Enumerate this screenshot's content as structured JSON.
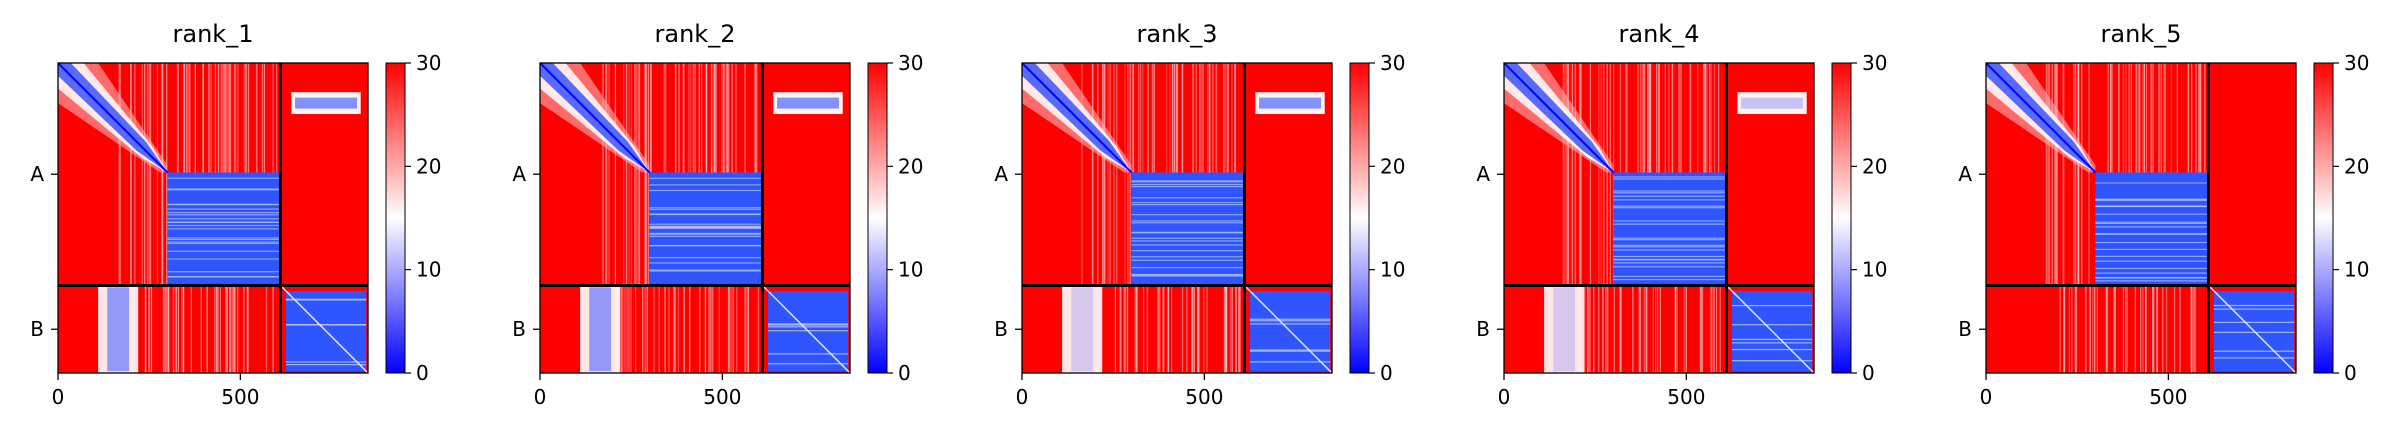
{
  "chart_data": [
    {
      "type": "heatmap",
      "title": "rank_1",
      "xticks": [
        0,
        500
      ],
      "yticklabels": [
        "A",
        "B"
      ],
      "chains": [
        {
          "name": "A",
          "start": 0,
          "end": 610
        },
        {
          "name": "B",
          "start": 610,
          "end": 850
        }
      ],
      "xlim": [
        0,
        850
      ],
      "colorbar": {
        "min": 0,
        "max": 30,
        "ticks": [
          0,
          10,
          20,
          30
        ],
        "colors": [
          "#0000ff",
          "#ffffff",
          "#ff0000"
        ]
      },
      "features": {
        "a_diag_blue": true,
        "a_block_blue": true,
        "a_b_white_band": true,
        "b_a_white_band": true,
        "b_block_blue": true
      }
    },
    {
      "type": "heatmap",
      "title": "rank_2",
      "xticks": [
        0,
        500
      ],
      "yticklabels": [
        "A",
        "B"
      ],
      "chains": [
        {
          "name": "A",
          "start": 0,
          "end": 610
        },
        {
          "name": "B",
          "start": 610,
          "end": 850
        }
      ],
      "xlim": [
        0,
        850
      ],
      "colorbar": {
        "min": 0,
        "max": 30,
        "ticks": [
          0,
          10,
          20,
          30
        ],
        "colors": [
          "#0000ff",
          "#ffffff",
          "#ff0000"
        ]
      },
      "features": {
        "a_diag_blue": true,
        "a_block_blue": true,
        "a_b_white_band": true,
        "b_a_white_band": true,
        "b_block_blue": true
      }
    },
    {
      "type": "heatmap",
      "title": "rank_3",
      "xticks": [
        0,
        500
      ],
      "yticklabels": [
        "A",
        "B"
      ],
      "chains": [
        {
          "name": "A",
          "start": 0,
          "end": 610
        },
        {
          "name": "B",
          "start": 610,
          "end": 850
        }
      ],
      "xlim": [
        0,
        850
      ],
      "colorbar": {
        "min": 0,
        "max": 30,
        "ticks": [
          0,
          10,
          20,
          30
        ],
        "colors": [
          "#0000ff",
          "#ffffff",
          "#ff0000"
        ]
      },
      "features": {
        "a_diag_blue": true,
        "a_block_blue": true,
        "a_b_white_band": true,
        "b_a_white_band": true,
        "b_block_blue": true
      }
    },
    {
      "type": "heatmap",
      "title": "rank_4",
      "xticks": [
        0,
        500
      ],
      "yticklabels": [
        "A",
        "B"
      ],
      "chains": [
        {
          "name": "A",
          "start": 0,
          "end": 610
        },
        {
          "name": "B",
          "start": 610,
          "end": 850
        }
      ],
      "xlim": [
        0,
        850
      ],
      "colorbar": {
        "min": 0,
        "max": 30,
        "ticks": [
          0,
          10,
          20,
          30
        ],
        "colors": [
          "#0000ff",
          "#ffffff",
          "#ff0000"
        ]
      },
      "features": {
        "a_diag_blue": true,
        "a_block_blue": true,
        "a_b_white_band": true,
        "b_a_white_band": true,
        "b_block_blue": true
      }
    },
    {
      "type": "heatmap",
      "title": "rank_5",
      "xticks": [
        0,
        500
      ],
      "yticklabels": [
        "A",
        "B"
      ],
      "chains": [
        {
          "name": "A",
          "start": 0,
          "end": 610
        },
        {
          "name": "B",
          "start": 610,
          "end": 850
        }
      ],
      "xlim": [
        0,
        850
      ],
      "colorbar": {
        "min": 0,
        "max": 30,
        "ticks": [
          0,
          10,
          20,
          30
        ],
        "colors": [
          "#0000ff",
          "#ffffff",
          "#ff0000"
        ]
      },
      "features": {
        "a_diag_blue": true,
        "a_block_blue": true,
        "a_b_white_band": false,
        "b_a_white_band": false,
        "b_block_blue": true
      }
    }
  ]
}
